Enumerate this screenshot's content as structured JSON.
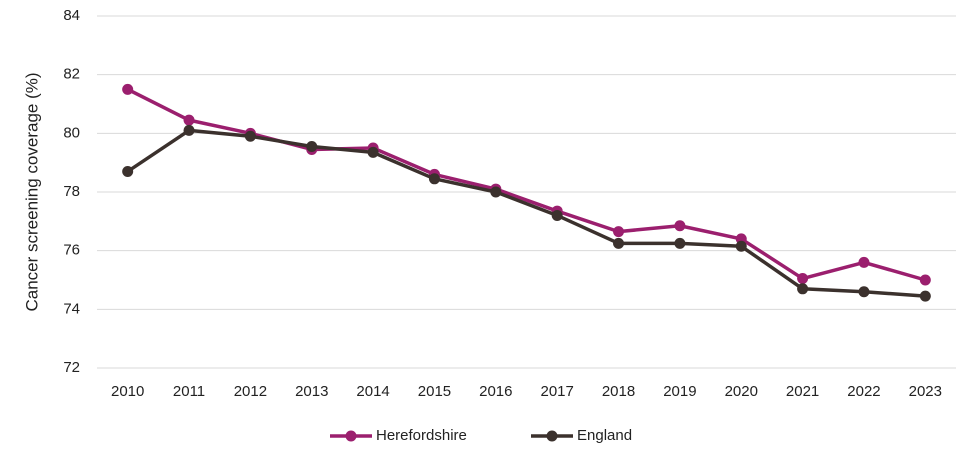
{
  "chart_data": {
    "type": "line",
    "y_label": "Cancer screening coverage (%)",
    "categories": [
      "2010",
      "2011",
      "2012",
      "2013",
      "2014",
      "2015",
      "2016",
      "2017",
      "2018",
      "2019",
      "2020",
      "2021",
      "2022",
      "2023"
    ],
    "series": [
      {
        "name": "Herefordshire",
        "color": "#9b1f6e",
        "values": [
          81.5,
          80.45,
          80.0,
          79.45,
          79.5,
          78.6,
          78.1,
          77.35,
          76.65,
          76.85,
          76.4,
          75.05,
          75.6,
          75.0
        ]
      },
      {
        "name": "England",
        "color": "#3b312d",
        "values": [
          78.7,
          80.1,
          79.9,
          79.55,
          79.35,
          78.45,
          78.0,
          77.2,
          76.25,
          76.25,
          76.15,
          74.7,
          74.6,
          74.45
        ]
      }
    ],
    "ylim": [
      72,
      84
    ],
    "yticks": [
      72,
      74,
      76,
      78,
      80,
      82,
      84
    ],
    "grid": true,
    "legend": "bottom"
  }
}
